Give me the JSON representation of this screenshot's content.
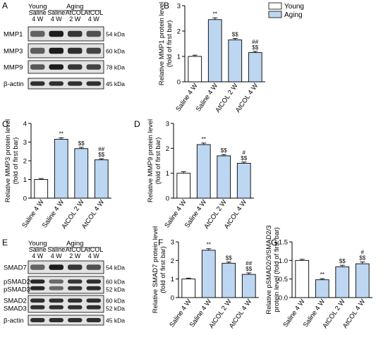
{
  "colors": {
    "young": "#ffffff",
    "aging": "#bdd7f2",
    "blot_bg": "#e2e2e2",
    "band": "#1c1c1c",
    "stroke": "#000000"
  },
  "legend": {
    "items": [
      {
        "label": "Young",
        "color": "#ffffff"
      },
      {
        "label": "Aging",
        "color": "#bdd7f2"
      }
    ],
    "placement": "top-right"
  },
  "blots": [
    {
      "panel": "A",
      "groups": [
        {
          "label": "Young",
          "lanes": 1
        },
        {
          "label": "Aging",
          "lanes": 3
        }
      ],
      "lanes": [
        [
          "Saline",
          "4 W"
        ],
        [
          "Saline",
          "4 W"
        ],
        [
          "AtCOL",
          "2 W"
        ],
        [
          "AtCOL",
          "4 W"
        ]
      ],
      "rows": [
        {
          "name": "MMP1",
          "kda": "54 kDa",
          "intensity": [
            0.45,
            1.0,
            0.8,
            0.6
          ]
        },
        {
          "name": "MMP3",
          "kda": "60 kDa",
          "intensity": [
            0.5,
            1.0,
            0.85,
            0.7
          ]
        },
        {
          "name": "MMP9",
          "kda": "78 kDa",
          "intensity": [
            0.55,
            1.0,
            0.8,
            0.7
          ]
        },
        {
          "name": "β-actin",
          "kda": "45 kDa",
          "intensity": [
            0.85,
            0.85,
            0.85,
            0.85
          ]
        }
      ]
    },
    {
      "panel": "E",
      "groups": [
        {
          "label": "Young",
          "lanes": 1
        },
        {
          "label": "Aging",
          "lanes": 3
        }
      ],
      "lanes": [
        [
          "Saline",
          "4 W"
        ],
        [
          "Saline",
          "4 W"
        ],
        [
          "AtCOL",
          "2 W"
        ],
        [
          "AtCOL",
          "4 W"
        ]
      ],
      "rows": [
        {
          "name": "SMAD7",
          "kda": "54 kDa",
          "intensity": [
            0.45,
            1.0,
            0.8,
            0.6
          ]
        },
        {
          "name": "pSMAD2|pSMAD3",
          "kda": "60 kDa|52 kDa",
          "intensity": [
            0.9,
            0.4,
            0.8,
            0.85
          ],
          "double": true
        },
        {
          "name": "SMAD2|SMAD3",
          "kda": "60 kDa|52 kDa",
          "intensity": [
            0.85,
            0.85,
            0.85,
            0.85
          ],
          "double": true
        },
        {
          "name": "β-actin",
          "kda": "45 kDa",
          "intensity": [
            0.85,
            0.85,
            0.85,
            0.85
          ]
        }
      ]
    }
  ],
  "chart_data": [
    {
      "panel": "B",
      "type": "bar",
      "categories": [
        "Saline 4 W",
        "Saline 4 W",
        "AtCOL 2 W",
        "AtCOL 4 W"
      ],
      "values": [
        1.0,
        2.45,
        1.65,
        1.15
      ],
      "errors": [
        0.05,
        0.07,
        0.06,
        0.05
      ],
      "annotations": [
        [],
        [
          "**"
        ],
        [
          "$$"
        ],
        [
          "##",
          "$$"
        ]
      ],
      "ylabel": "Relative MMP1 protein level|(fold of first bar)",
      "ylim": [
        0,
        3
      ],
      "yticks": [
        0,
        1,
        2,
        3
      ]
    },
    {
      "panel": "C",
      "type": "bar",
      "categories": [
        "Saline 4 W",
        "Saline 4 W",
        "AtCOL 2 W",
        "AtCOL 4 W"
      ],
      "values": [
        1.0,
        3.15,
        2.65,
        2.05
      ],
      "errors": [
        0.05,
        0.08,
        0.07,
        0.06
      ],
      "annotations": [
        [],
        [
          "**"
        ],
        [
          "$$"
        ],
        [
          "##",
          "$$"
        ]
      ],
      "ylabel": "Relative MMP3 protein level|(fold of first bar)",
      "ylim": [
        0,
        4
      ],
      "yticks": [
        0,
        1,
        2,
        3,
        4
      ]
    },
    {
      "panel": "D",
      "type": "bar",
      "categories": [
        "Saline 4 W",
        "Saline 4 W",
        "AtCOL 2 W",
        "AtCOL 4 W"
      ],
      "values": [
        1.0,
        2.15,
        1.7,
        1.4
      ],
      "errors": [
        0.06,
        0.06,
        0.05,
        0.05
      ],
      "annotations": [
        [],
        [
          "**"
        ],
        [
          "$$"
        ],
        [
          "#",
          "$$"
        ]
      ],
      "ylabel": "Relative MMP9 protein level|(fold of first bar)",
      "ylim": [
        0,
        3
      ],
      "yticks": [
        0,
        1,
        2,
        3
      ]
    },
    {
      "panel": "F",
      "type": "bar",
      "categories": [
        "Saline 4 W",
        "Saline 4 W",
        "AtCOL 2 W",
        "AtCOL 4 W"
      ],
      "values": [
        1.0,
        2.55,
        1.85,
        1.25
      ],
      "errors": [
        0.05,
        0.08,
        0.07,
        0.08
      ],
      "annotations": [
        [],
        [
          "**"
        ],
        [
          "$$"
        ],
        [
          "##",
          "$$"
        ]
      ],
      "ylabel": "Relative SMAD7 protein level|(fold of first bar)",
      "ylim": [
        0,
        3
      ],
      "yticks": [
        0,
        1,
        2,
        3
      ]
    },
    {
      "panel": "G",
      "type": "bar",
      "categories": [
        "Saline 4 W",
        "Saline 4 W",
        "AtCOL 2 W",
        "AtCOL 4 W"
      ],
      "values": [
        1.0,
        0.48,
        0.83,
        0.91
      ],
      "errors": [
        0.03,
        0.03,
        0.04,
        0.05
      ],
      "annotations": [
        [],
        [
          "**"
        ],
        [
          "$$"
        ],
        [
          "#",
          "$$"
        ]
      ],
      "ylabel": "Relative pSMAD2/3/SMAD2/3|protein level (fold of first bar)",
      "ylim": [
        0,
        1.5
      ],
      "yticks": [
        0,
        0.5,
        1.0,
        1.5
      ],
      "ytick_labels": [
        "0.0",
        "0.5",
        "1.0",
        "1.5"
      ]
    }
  ]
}
